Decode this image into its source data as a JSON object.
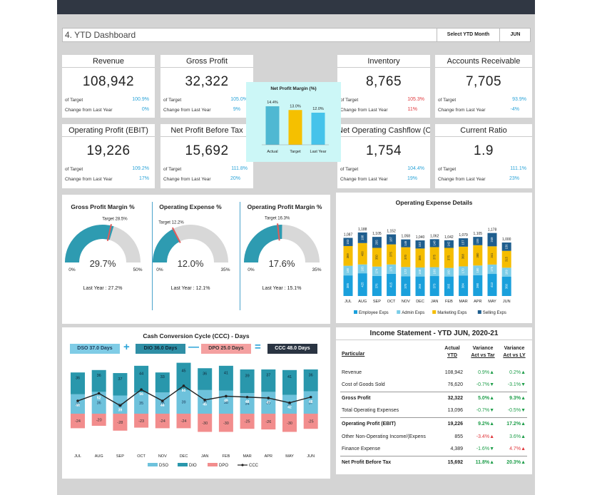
{
  "title": "4. YTD Dashboard",
  "month": {
    "label": "Select YTD Month",
    "value": "JUN"
  },
  "kpis": [
    {
      "title": "Revenue",
      "value": "108,942",
      "target_label": "of Target",
      "target_pct": "100.9%",
      "change_label": "Change from Last Year",
      "change_pct": "0%",
      "target_color": "#2aa3d8",
      "change_color": "#2aa3d8"
    },
    {
      "title": "Gross Profit",
      "value": "32,322",
      "target_label": "of Target",
      "target_pct": "105.0%",
      "change_label": "Change from Last Year",
      "change_pct": "9%",
      "target_color": "#2aa3d8",
      "change_color": "#2aa3d8"
    },
    {
      "title": "Inventory",
      "value": "8,765",
      "target_label": "of Target",
      "target_pct": "105.3%",
      "change_label": "Change from Last Year",
      "change_pct": "11%",
      "target_color": "#e0393e",
      "change_color": "#e0393e"
    },
    {
      "title": "Accounts Receivable",
      "value": "7,705",
      "target_label": "of Target",
      "target_pct": "93.9%",
      "change_label": "Change from Last Year",
      "change_pct": "-4%",
      "target_color": "#2aa3d8",
      "change_color": "#2aa3d8"
    },
    {
      "title": "Operating Profit (EBIT)",
      "value": "19,226",
      "target_label": "of Target",
      "target_pct": "109.2%",
      "change_label": "Change from Last Year",
      "change_pct": "17%",
      "target_color": "#2aa3d8",
      "change_color": "#2aa3d8"
    },
    {
      "title": "Net Profit Before Tax",
      "value": "15,692",
      "target_label": "of Target",
      "target_pct": "111.8%",
      "change_label": "Change from Last Year",
      "change_pct": "20%",
      "target_color": "#2aa3d8",
      "change_color": "#2aa3d8"
    },
    {
      "title": "Net Operating Cashflow (OCF",
      "value": "1,754",
      "target_label": "of Target",
      "target_pct": "104.4%",
      "change_label": "Change from Last Year",
      "change_pct": "19%",
      "target_color": "#2aa3d8",
      "change_color": "#2aa3d8"
    },
    {
      "title": "Current Ratio",
      "value": "1.9",
      "target_label": "of Target",
      "target_pct": "111.1%",
      "change_label": "Change from Last Year",
      "change_pct": "23%",
      "target_color": "#2aa3d8",
      "change_color": "#2aa3d8"
    }
  ],
  "gauges": [
    {
      "title": "Gross Profit Margin %",
      "value": 29.7,
      "value_label": "29.7%",
      "target": 28.5,
      "target_label": "Target 28.5%",
      "max": 50,
      "min_label": "0%",
      "max_label": "50%",
      "last_year": "Last Year : 27.2%"
    },
    {
      "title": "Operating Expense %",
      "value": 12.0,
      "value_label": "12.0%",
      "target": 12.2,
      "target_label": "Target 12.2%",
      "max": 35,
      "min_label": "0%",
      "max_label": "35%",
      "last_year": "Last Year : 12.1%"
    },
    {
      "title": "Operating Profit Margin %",
      "value": 17.6,
      "value_label": "17.6%",
      "target": 16.3,
      "target_label": "Target 16.3%",
      "max": 35,
      "min_label": "0%",
      "max_label": "35%",
      "last_year": "Last Year : 15.1%"
    }
  ],
  "chart_data": [
    {
      "type": "bar",
      "title": "Net Profit Margin (%)",
      "categories": [
        "Actual",
        "Target",
        "Last Year"
      ],
      "values": [
        14.4,
        13.0,
        12.0
      ],
      "value_labels": [
        "14.4%",
        "13.0%",
        "12.0%"
      ],
      "colors": [
        "#4fb8d2",
        "#f5c000",
        "#45c3ea"
      ],
      "ylim": [
        0,
        16
      ]
    },
    {
      "type": "bar",
      "stacked": true,
      "title": "Operating Expense Details",
      "categories": [
        "JUL",
        "AUG",
        "SEP",
        "OCT",
        "NOV",
        "DEC",
        "JAN",
        "FEB",
        "MAR",
        "APR",
        "MAY",
        "JUN"
      ],
      "totals": [
        1087,
        1188,
        1105,
        1152,
        1058,
        1040,
        1062,
        1042,
        1079,
        1105,
        1178,
        1000
      ],
      "total_labels": [
        "1,087",
        "1,188",
        "1,105",
        "1,152",
        "1,058",
        "1,040",
        "1,062",
        "1,042",
        "1,079",
        "1,105",
        "1,178",
        "1,000"
      ],
      "series": [
        {
          "name": "Employee Exps",
          "color": "#1aa0dc",
          "values": [
            385,
            425,
            376,
            415,
            370,
            365,
            373,
            365,
            384,
            390,
            413,
            360
          ]
        },
        {
          "name": "Admin Exps",
          "color": "#7bcde8",
          "values": [
            180,
            165,
            174,
            175,
            172,
            168,
            166,
            160,
            170,
            180,
            175,
            169
          ]
        },
        {
          "name": "Marketing Exps",
          "color": "#f5bd00",
          "values": [
            369,
            400,
            350,
            375,
            370,
            355,
            375,
            375,
            368,
            380,
            341,
            315
          ]
        },
        {
          "name": "Selling Exps",
          "color": "#1f5e8e",
          "values": [
            153,
            198,
            205,
            187,
            146,
            152,
            148,
            142,
            157,
            155,
            249,
            156
          ]
        }
      ]
    },
    {
      "type": "bar",
      "stacked": true,
      "title": "Cash Conversion Cycle (CCC) - Days",
      "categories": [
        "JUL",
        "AUG",
        "SEP",
        "OCT",
        "NOV",
        "DEC",
        "JAN",
        "FEB",
        "MAR",
        "APR",
        "MAY",
        "JUN"
      ],
      "series": [
        {
          "name": "DSO",
          "color": "#6ec2dc",
          "values": [
            32,
            36,
            30,
            35,
            35,
            39,
            39,
            38,
            34,
            36,
            31,
            37
          ]
        },
        {
          "name": "DIO",
          "color": "#2997ac",
          "values": [
            36,
            36,
            37,
            44,
            33,
            45,
            36,
            41,
            39,
            37,
            41,
            36
          ]
        },
        {
          "name": "DPO",
          "color": "#f28d8d",
          "values": [
            -24,
            -20,
            -28,
            -23,
            -24,
            -24,
            -30,
            -30,
            -25,
            -26,
            -30,
            -25
          ]
        },
        {
          "name": "CCC",
          "type": "line",
          "color": "#222222",
          "values": [
            44,
            52,
            39,
            56,
            44,
            60,
            45,
            49,
            48,
            47,
            42,
            48
          ]
        }
      ]
    }
  ],
  "npm_title": "Net Profit Margin (%)",
  "opex_title": "Operating Expense Details",
  "ccc": {
    "title": "Cash Conversion Cycle (CCC) - Days",
    "dso": "DSO 37.0 Days",
    "dio": "DIO 36.0 Days",
    "dpo": "DPO 25.0 Days",
    "ccc": "CCC 48.0 Days",
    "plus": "+",
    "minus": "—",
    "equals": "="
  },
  "income": {
    "title": "Income Statement - YTD JUN, 2020-21",
    "headers": {
      "particular": "Particular",
      "actual": "Actual",
      "actual2": "YTD",
      "var_tar": "Variance",
      "var_tar2": "Act vs Tar",
      "var_ly": "Variance",
      "var_ly2": "Act vs LY"
    },
    "rows": [
      {
        "name": "Revenue",
        "actual": "108,942",
        "vt": "0.9%",
        "vt_dir": "up",
        "vl": "0.2%",
        "vl_dir": "up",
        "bold": false,
        "sep": false
      },
      {
        "name": "Cost of Goods Sold",
        "actual": "76,620",
        "vt": "-0.7%",
        "vt_dir": "down_good",
        "vl": "-3.1%",
        "vl_dir": "down_good",
        "bold": false,
        "sep": false
      },
      {
        "name": "Gross Profit",
        "actual": "32,322",
        "vt": "5.0%",
        "vt_dir": "up",
        "vl": "9.3%",
        "vl_dir": "up",
        "bold": true,
        "sep": true
      },
      {
        "name": "Total Operating Expenses",
        "actual": "13,096",
        "vt": "-0.7%",
        "vt_dir": "down_good",
        "vl": "-0.5%",
        "vl_dir": "down_good",
        "bold": false,
        "sep": false
      },
      {
        "name": "Operating Profit (EBIT)",
        "actual": "19,226",
        "vt": "9.2%",
        "vt_dir": "up",
        "vl": "17.2%",
        "vl_dir": "up",
        "bold": true,
        "sep": true
      },
      {
        "name": "Other Non-Operating Income/(Expens",
        "actual": "855",
        "vt": "-3.4%",
        "vt_dir": "up_bad",
        "vl": "3.6%",
        "vl_dir": "up",
        "bold": false,
        "sep": false
      },
      {
        "name": "Finance Expense",
        "actual": "4,389",
        "vt": "-1.6%",
        "vt_dir": "down_good",
        "vl": "4.7%",
        "vl_dir": "up_bad",
        "bold": false,
        "sep": false
      },
      {
        "name": "Net Profit Before Tax",
        "actual": "15,692",
        "vt": "11.8%",
        "vt_dir": "up",
        "vl": "20.3%",
        "vl_dir": "up",
        "bold": true,
        "sep": true
      }
    ]
  }
}
